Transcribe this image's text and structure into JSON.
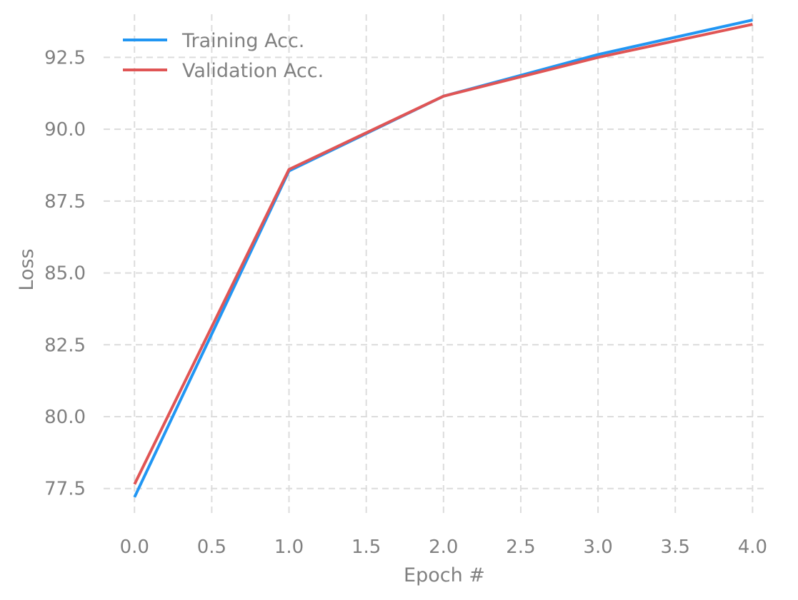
{
  "chart_data": {
    "type": "line",
    "title": "",
    "xlabel": "Epoch #",
    "ylabel": "Loss",
    "x": [
      0,
      1,
      2,
      3,
      4
    ],
    "xlim": [
      -0.2,
      4.1
    ],
    "ylim": [
      76.5,
      94.0
    ],
    "xticks": [
      0.0,
      0.5,
      1.0,
      1.5,
      2.0,
      2.5,
      3.0,
      3.5,
      4.0
    ],
    "yticks": [
      77.5,
      80.0,
      82.5,
      85.0,
      87.5,
      90.0,
      92.5
    ],
    "xtick_labels": [
      "0.0",
      "0.5",
      "1.0",
      "1.5",
      "2.0",
      "2.5",
      "3.0",
      "3.5",
      "4.0"
    ],
    "ytick_labels": [
      "77.5",
      "80.0",
      "82.5",
      "85.0",
      "87.5",
      "90.0",
      "92.5"
    ],
    "grid": true,
    "legend_position": "top-left",
    "series": [
      {
        "name": "Training Acc.",
        "color": "#2196f3",
        "values": [
          77.2,
          88.55,
          91.15,
          92.6,
          93.8
        ]
      },
      {
        "name": "Validation Acc.",
        "color": "#e05555",
        "values": [
          77.65,
          88.6,
          91.15,
          92.5,
          93.65
        ]
      }
    ]
  }
}
